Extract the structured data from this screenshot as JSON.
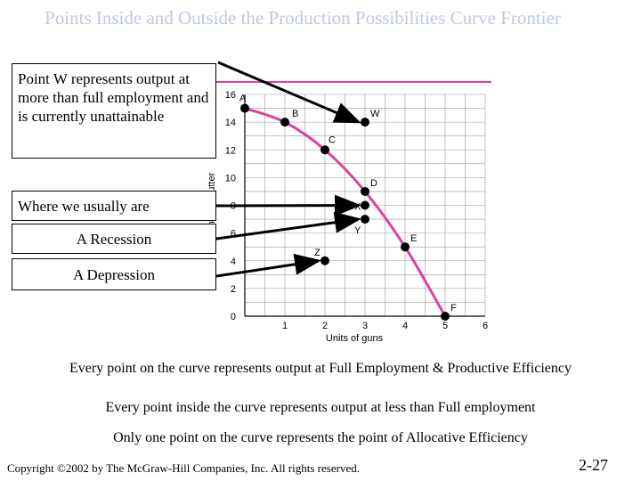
{
  "title": "Points Inside and Outside the Production Possibilities Curve Frontier",
  "callouts": {
    "w_text": "Point W represents output at more than full employment and is currently unattainable",
    "usual": "Where we usually are",
    "recession": "A Recession",
    "depression": "A Depression"
  },
  "captions": {
    "line1": "Every point on the curve represents output at Full Employment & Productive Efficiency",
    "line2": "Every point inside the curve represents output at less than Full employment",
    "line3": "Only one point on the curve represents the point of Allocative Efficiency"
  },
  "footer": {
    "copyright": "Copyright ©2002 by The McGraw-Hill Companies, Inc.  All rights reserved.",
    "slide_number": "2-27"
  },
  "colors": {
    "curve": "#e0409a",
    "title": "#c0c8e0",
    "rule": "#e0409a",
    "grid": "#9a9a9a"
  },
  "chart_data": {
    "type": "line",
    "xlabel": "Units of guns",
    "ylabel": "Units of butter",
    "xlim": [
      0,
      6
    ],
    "ylim": [
      0,
      16
    ],
    "x_ticks": [
      1,
      2,
      3,
      4,
      5,
      6
    ],
    "y_ticks": [
      0,
      2,
      4,
      6,
      8,
      10,
      12,
      14,
      16
    ],
    "curve_points": [
      {
        "label": "A",
        "x": 0,
        "y": 15
      },
      {
        "label": "B",
        "x": 1,
        "y": 14
      },
      {
        "label": "C",
        "x": 2,
        "y": 12
      },
      {
        "label": "D",
        "x": 3,
        "y": 9
      },
      {
        "label": "E",
        "x": 4,
        "y": 5
      },
      {
        "label": "F",
        "x": 5,
        "y": 0
      }
    ],
    "other_points": [
      {
        "label": "W",
        "x": 3,
        "y": 14
      },
      {
        "label": "X",
        "x": 3,
        "y": 8
      },
      {
        "label": "Y",
        "x": 3,
        "y": 7
      },
      {
        "label": "Z",
        "x": 2,
        "y": 4
      }
    ]
  }
}
